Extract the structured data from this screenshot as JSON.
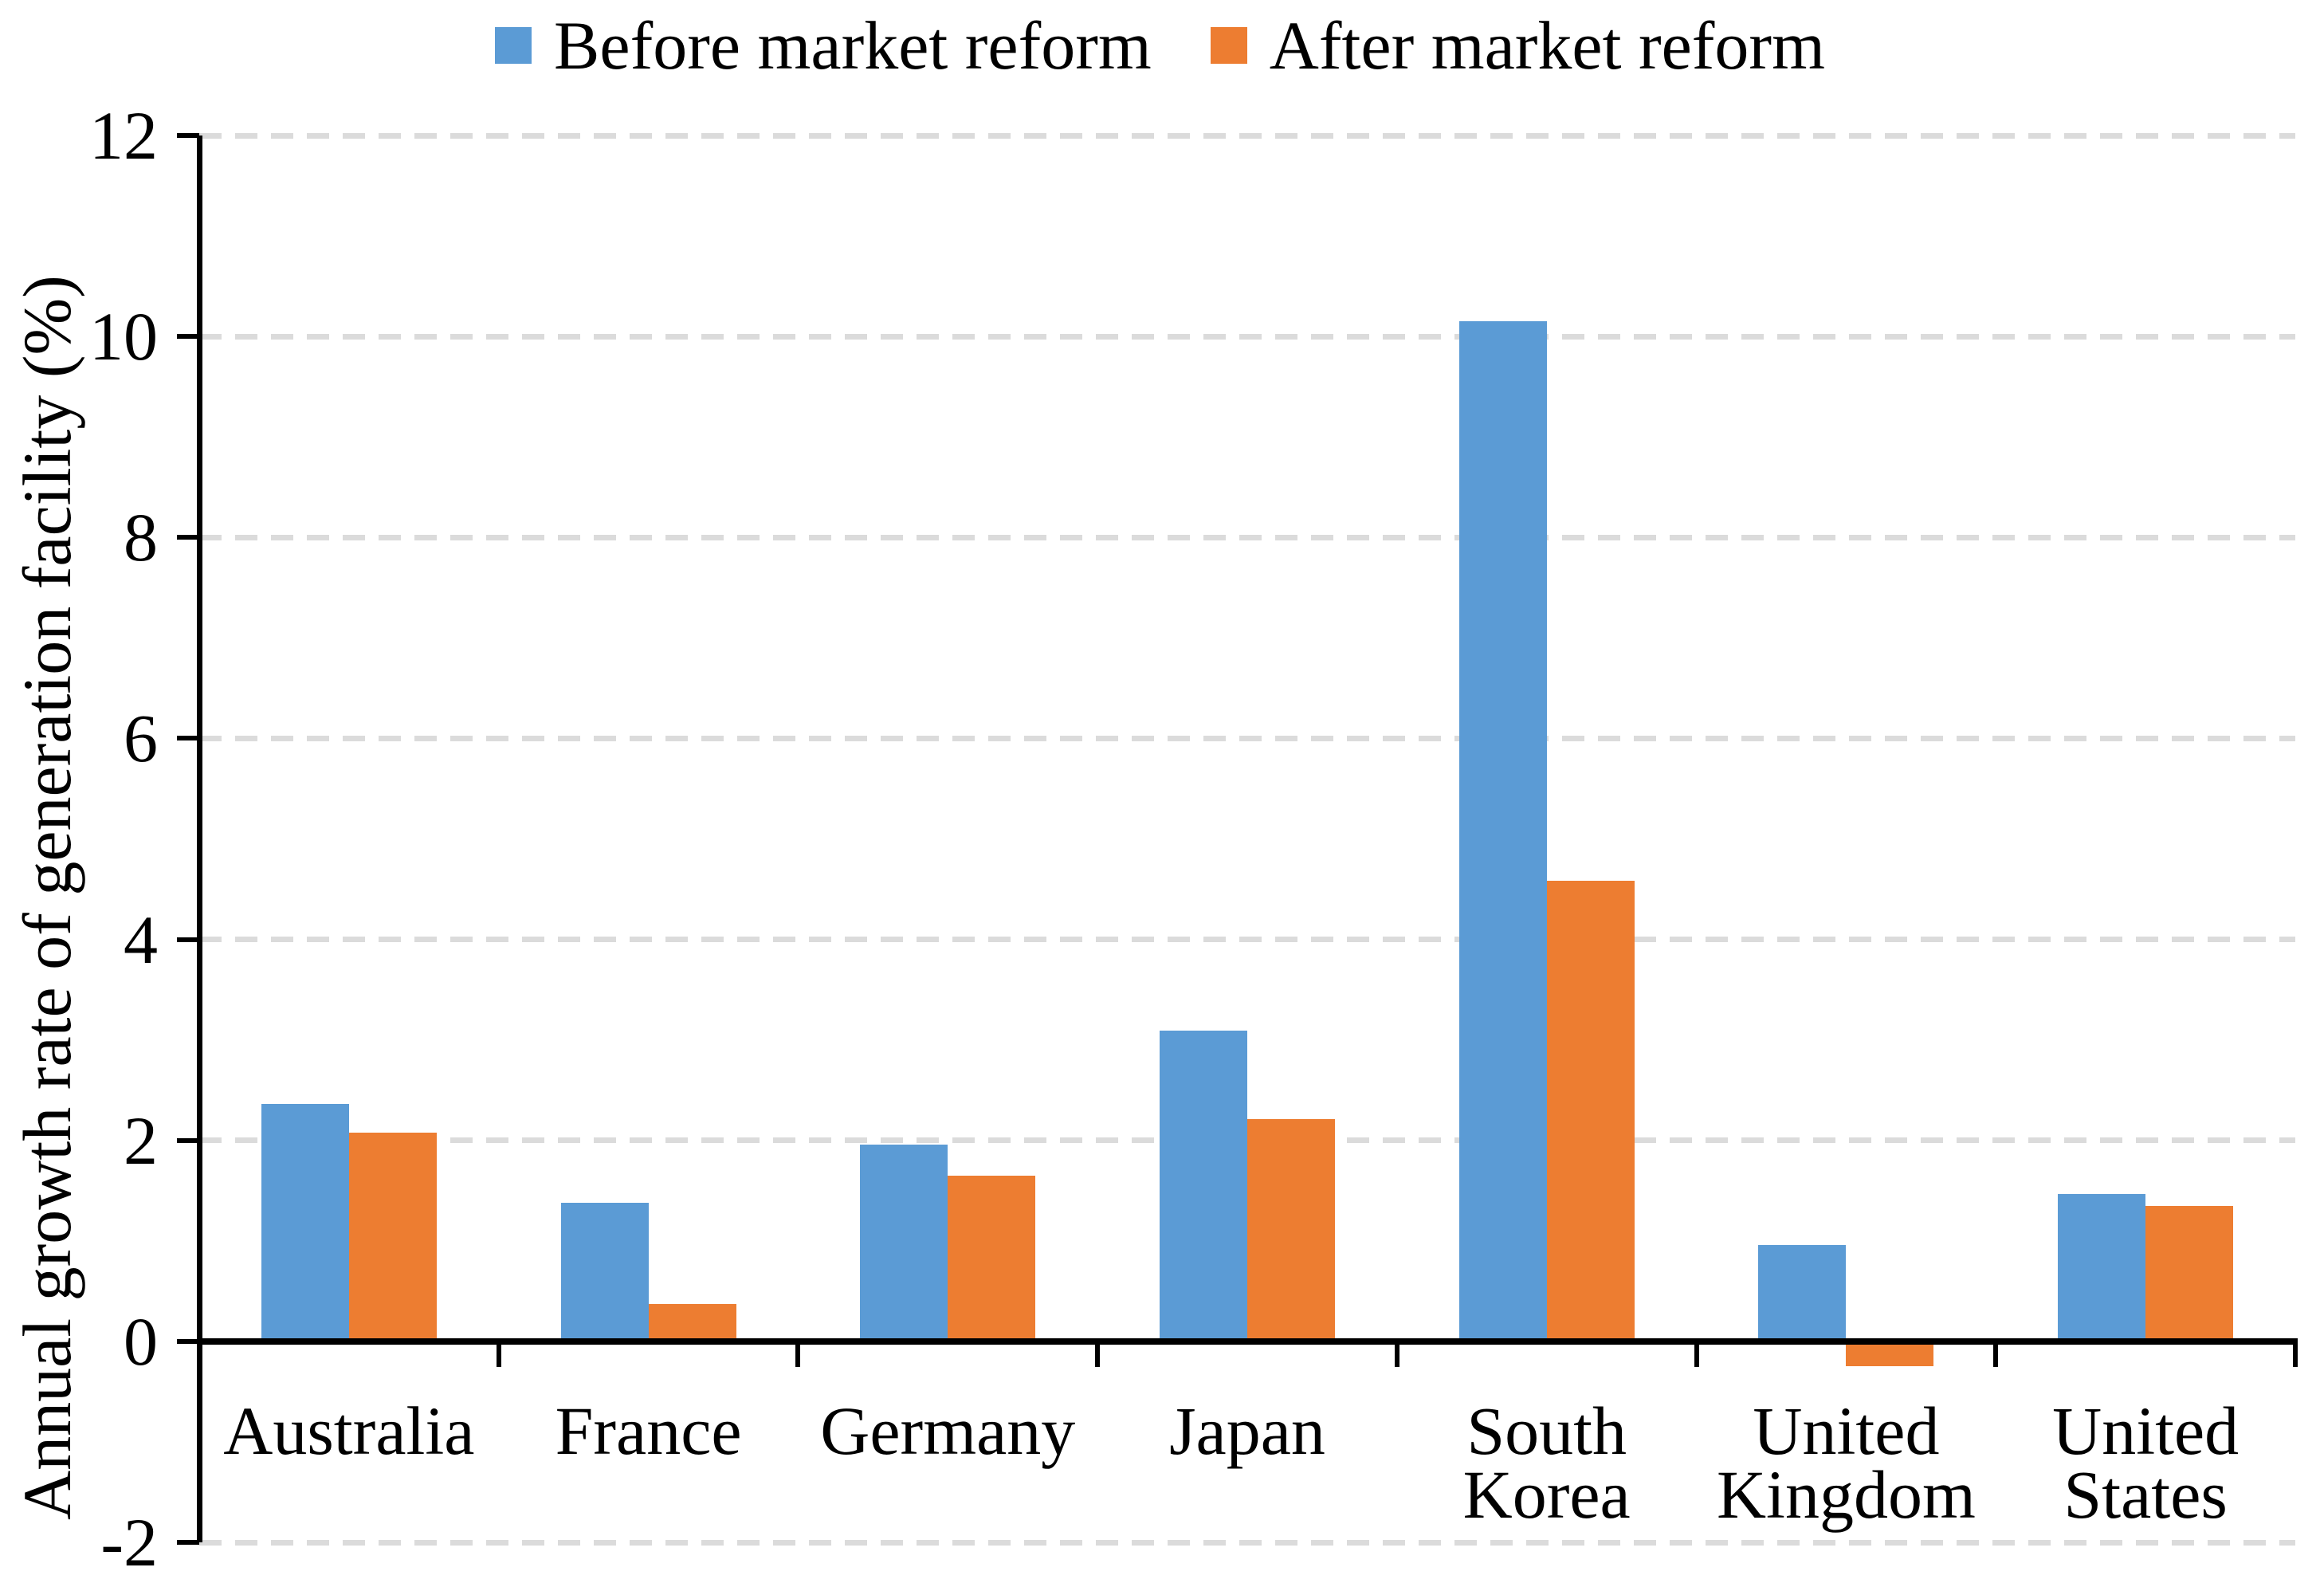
{
  "legend": {
    "items": [
      {
        "label": "Before market reform",
        "color": "#5B9BD5"
      },
      {
        "label": "After market reform",
        "color": "#ED7D31"
      }
    ]
  },
  "y_axis": {
    "title": "Annual growth rate of generation facility (%)",
    "tick_labels": [
      "12",
      "10",
      "8",
      "6",
      "4",
      "2",
      "0",
      "-2"
    ],
    "max": 12,
    "min": -2,
    "step": 2
  },
  "chart_data": {
    "type": "bar",
    "title": "",
    "categories": [
      "Australia",
      "France",
      "Germany",
      "Japan",
      "South Korea",
      "United Kingdom",
      "United States"
    ],
    "series": [
      {
        "name": "Before market reform",
        "color": "#5B9BD5",
        "values": [
          2.36,
          1.38,
          1.96,
          3.09,
          10.15,
          0.96,
          1.47
        ]
      },
      {
        "name": "After market reform",
        "color": "#ED7D31",
        "values": [
          2.08,
          0.37,
          1.65,
          2.21,
          4.58,
          -0.25,
          1.35
        ]
      }
    ],
    "xlabel": "",
    "ylabel": "Annual growth rate of generation facility (%)",
    "ylim": [
      -2,
      12
    ],
    "grid": "horizontal-dashed",
    "gridline_color": "#DBDBDB",
    "legend_position": "top"
  }
}
